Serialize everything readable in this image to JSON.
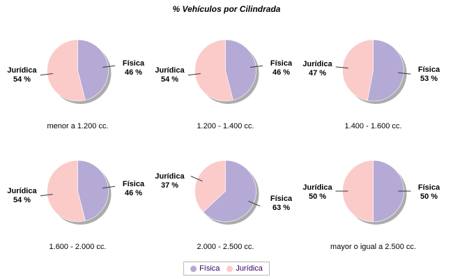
{
  "title": "% Vehículos por Cilindrada",
  "chart_data": {
    "type": "pie",
    "title": "% Vehículos por Cilindrada",
    "unit": "%",
    "series_names": [
      "Física",
      "Jurídica"
    ],
    "colors": {
      "fisica": "#B5AAD5",
      "juridica": "#FBCBC9",
      "shadow": "#979797",
      "label_text": "#000000",
      "legend_text": "#330066",
      "legend_border": "#B8B8B8"
    },
    "layout": {
      "rows": 2,
      "cols": 3,
      "legend_position": "bottom"
    },
    "pies": [
      {
        "category": "menor a 1.200 cc.",
        "fisica_label": "Física",
        "fisica_pct": 46,
        "fisica_pct_label": "46 %",
        "juridica_label": "Jurídica",
        "juridica_pct": 54,
        "juridica_pct_label": "54 %"
      },
      {
        "category": "1.200 - 1.400 cc.",
        "fisica_label": "Física",
        "fisica_pct": 46,
        "fisica_pct_label": "46 %",
        "juridica_label": "Jurídica",
        "juridica_pct": 54,
        "juridica_pct_label": "54 %"
      },
      {
        "category": "1.400 - 1.600 cc.",
        "fisica_label": "Física",
        "fisica_pct": 53,
        "fisica_pct_label": "53 %",
        "juridica_label": "Jurídica",
        "juridica_pct": 47,
        "juridica_pct_label": "47 %"
      },
      {
        "category": "1.600 - 2.000 cc.",
        "fisica_label": "Física",
        "fisica_pct": 46,
        "fisica_pct_label": "46 %",
        "juridica_label": "Jurídica",
        "juridica_pct": 54,
        "juridica_pct_label": "54 %"
      },
      {
        "category": "2.000 - 2.500 cc.",
        "fisica_label": "Física",
        "fisica_pct": 63,
        "fisica_pct_label": "63 %",
        "juridica_label": "Jurídica",
        "juridica_pct": 37,
        "juridica_pct_label": "37 %"
      },
      {
        "category": "mayor o igual a 2.500 cc.",
        "fisica_label": "Física",
        "fisica_pct": 50,
        "fisica_pct_label": "50 %",
        "juridica_label": "Jurídica",
        "juridica_pct": 50,
        "juridica_pct_label": "50 %"
      }
    ],
    "legend": {
      "items": [
        {
          "label": "Física",
          "color": "#B5AAD5"
        },
        {
          "label": "Jurídica",
          "color": "#FBCBC9"
        }
      ]
    }
  }
}
